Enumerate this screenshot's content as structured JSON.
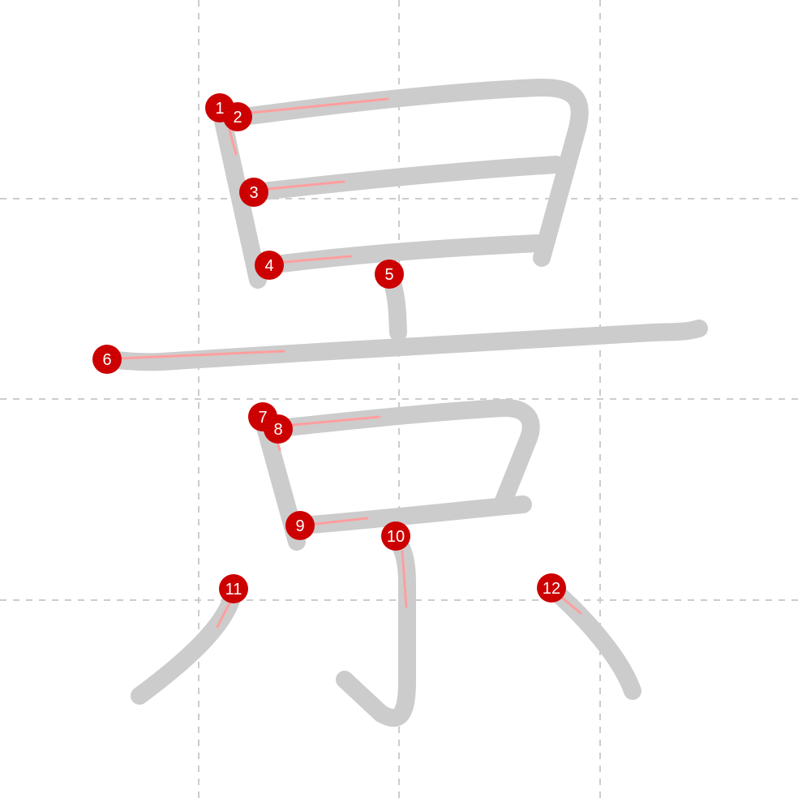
{
  "diagram": {
    "grid_color": "#cccccc",
    "stroke_color": "#cccccc",
    "hint_color": "#ff9e9e",
    "marker_color": "#cc0000",
    "marker_text_color": "#ffffff",
    "strokes": [
      {
        "number": "1"
      },
      {
        "number": "2"
      },
      {
        "number": "3"
      },
      {
        "number": "4"
      },
      {
        "number": "5"
      },
      {
        "number": "6"
      },
      {
        "number": "7"
      },
      {
        "number": "8"
      },
      {
        "number": "9"
      },
      {
        "number": "10"
      },
      {
        "number": "11"
      },
      {
        "number": "12"
      }
    ]
  }
}
